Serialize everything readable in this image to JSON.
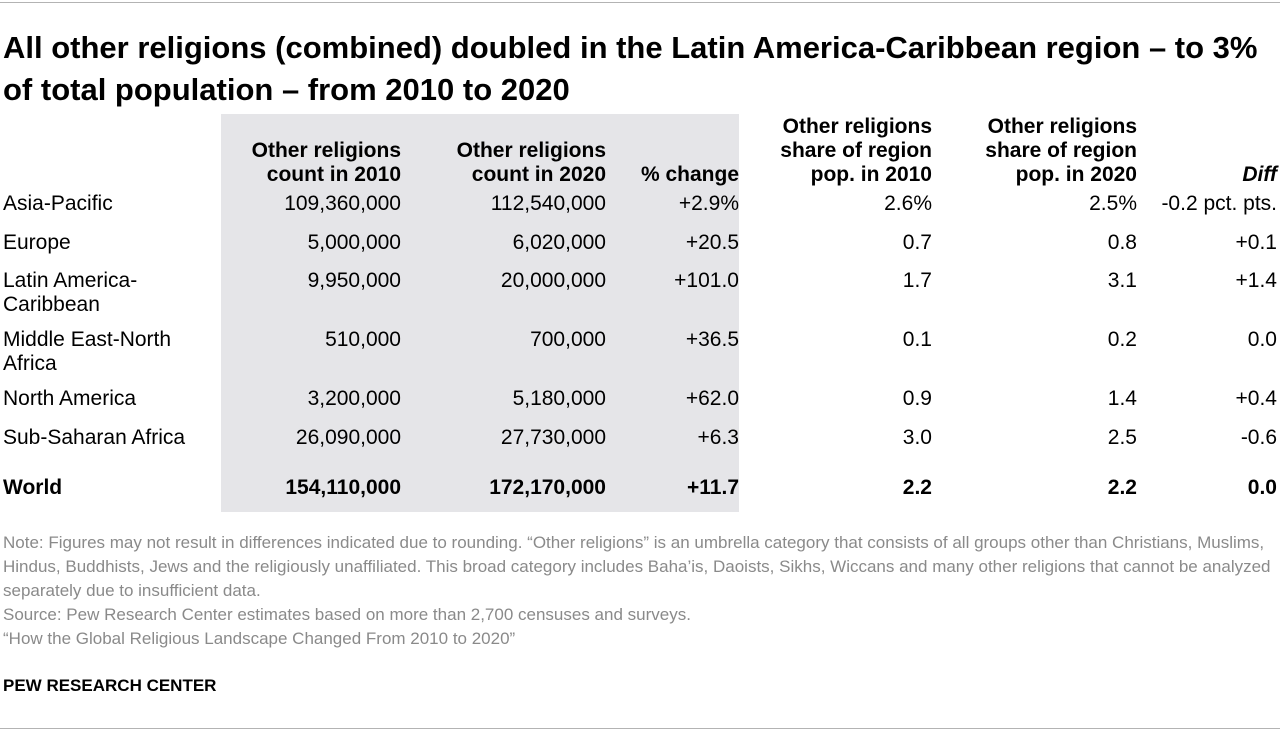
{
  "title": "All other religions (combined) doubled in the Latin America-Caribbean region – to 3% of total population – from 2010 to 2020",
  "chart_data": {
    "type": "table",
    "columns": [
      "",
      "Other religions count in 2010",
      "Other religions count in 2020",
      "% change",
      "Other religions share of region pop. in 2010",
      "Other religions share of region pop. in 2020",
      "Diff"
    ],
    "rows": [
      {
        "region": "Asia-Pacific",
        "count_2010": "109,360,000",
        "count_2020": "112,540,000",
        "pct_change": "+2.9%",
        "share_2010": "2.6%",
        "share_2020": "2.5%",
        "diff": "-0.2 pct. pts."
      },
      {
        "region": "Europe",
        "count_2010": "5,000,000",
        "count_2020": "6,020,000",
        "pct_change": "+20.5",
        "share_2010": "0.7",
        "share_2020": "0.8",
        "diff": "+0.1"
      },
      {
        "region": "Latin America-Caribbean",
        "count_2010": "9,950,000",
        "count_2020": "20,000,000",
        "pct_change": "+101.0",
        "share_2010": "1.7",
        "share_2020": "3.1",
        "diff": "+1.4"
      },
      {
        "region": "Middle East-North Africa",
        "count_2010": "510,000",
        "count_2020": "700,000",
        "pct_change": "+36.5",
        "share_2010": "0.1",
        "share_2020": "0.2",
        "diff": "0.0"
      },
      {
        "region": "North America",
        "count_2010": "3,200,000",
        "count_2020": "5,180,000",
        "pct_change": "+62.0",
        "share_2010": "0.9",
        "share_2020": "1.4",
        "diff": "+0.4"
      },
      {
        "region": "Sub-Saharan Africa",
        "count_2010": "26,090,000",
        "count_2020": "27,730,000",
        "pct_change": "+6.3",
        "share_2010": "3.0",
        "share_2020": "2.5",
        "diff": "-0.6"
      }
    ],
    "total": {
      "region": "World",
      "count_2010": "154,110,000",
      "count_2020": "172,170,000",
      "pct_change": "+11.7",
      "share_2010": "2.2",
      "share_2020": "2.2",
      "diff": "0.0"
    }
  },
  "notes": {
    "note": "Note: Figures may not result in differences indicated due to rounding. “Other religions” is an umbrella category that consists of all groups other than Christians, Muslims, Hindus, Buddhists, Jews and the religiously unaffiliated. This broad category includes Baha’is, Daoists, Sikhs, Wiccans and many other religions that cannot be analyzed separately due to insufficient data.",
    "source": "Source: Pew Research Center estimates based on more than 2,700 censuses and surveys.",
    "report": "“How the Global Religious Landscape Changed From 2010 to 2020”"
  },
  "brand": "PEW RESEARCH CENTER"
}
